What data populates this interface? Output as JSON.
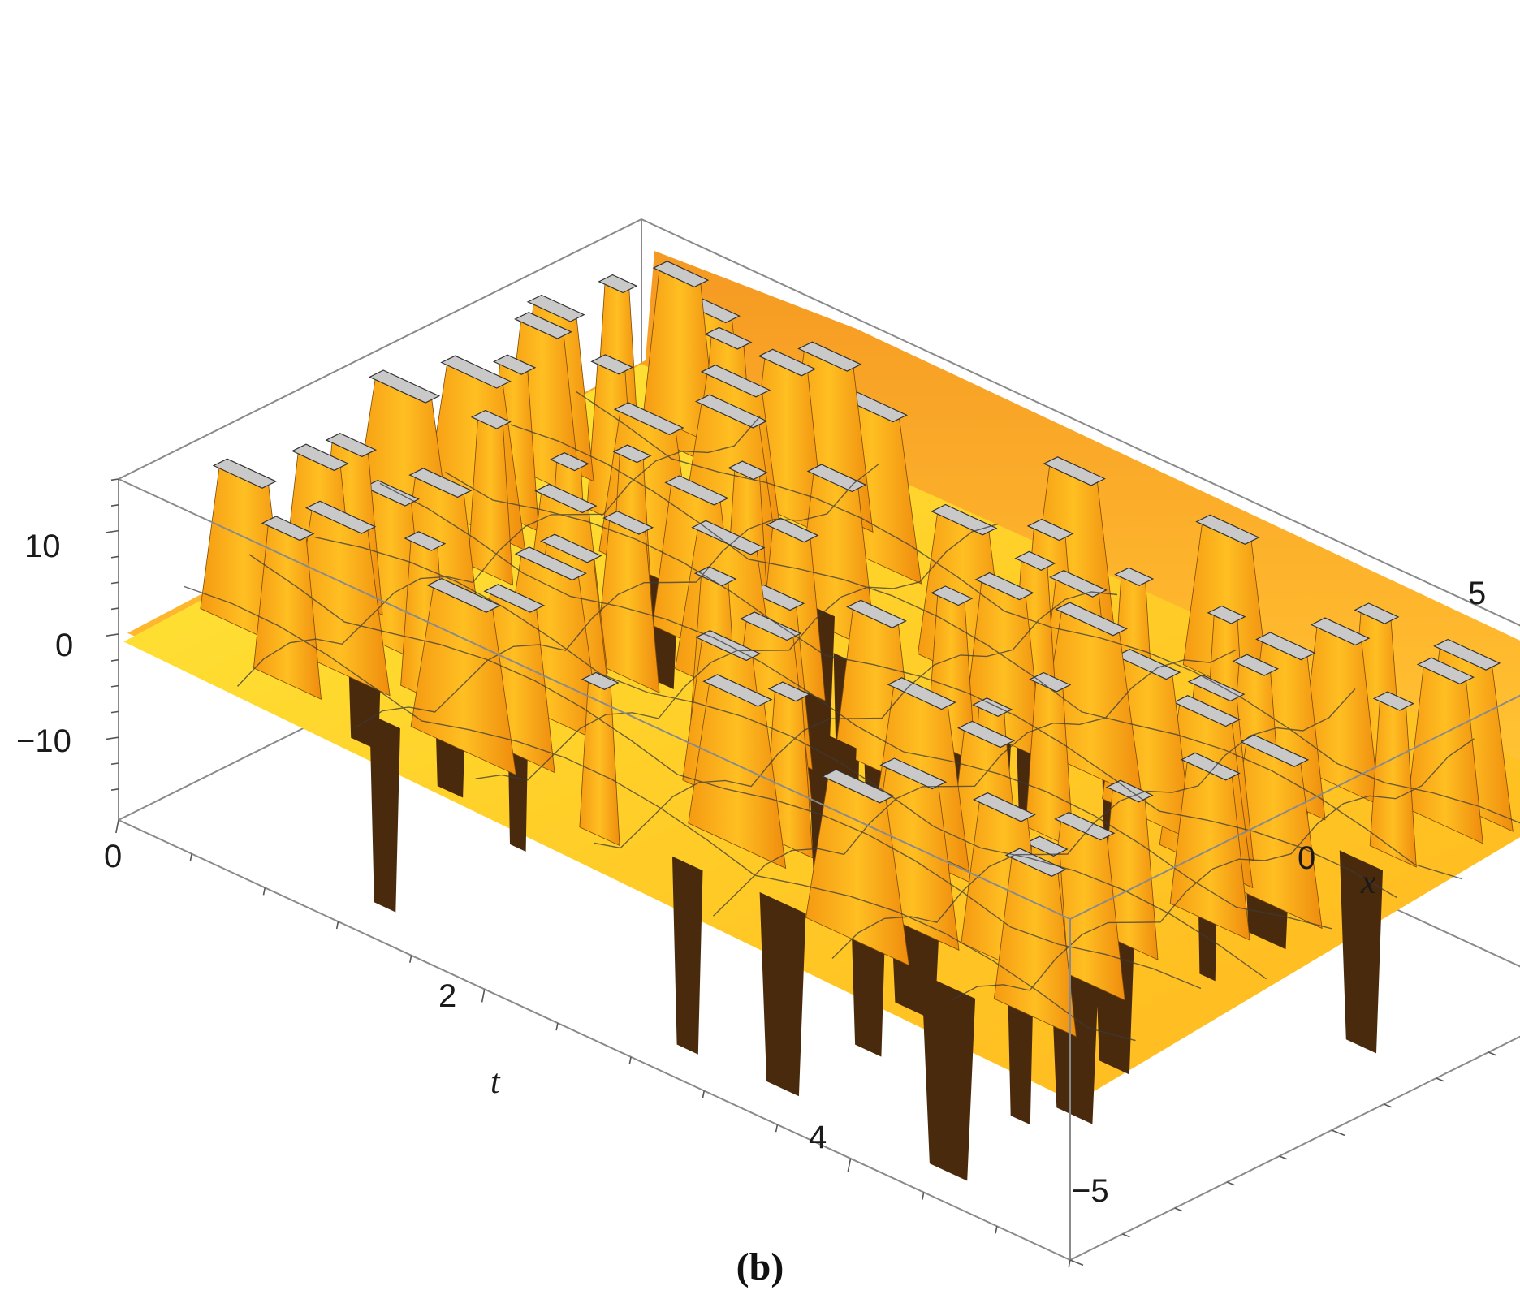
{
  "panel_label": "(b)",
  "chart_data": {
    "type": "surface3d",
    "xlabel": "t",
    "ylabel": "x",
    "zlabel": "",
    "t_range": [
      0,
      5.2
    ],
    "x_range": [
      -5,
      5
    ],
    "z_range": [
      -18,
      15
    ],
    "t_ticks": [
      {
        "value": 0,
        "label": "0"
      },
      {
        "value": 2,
        "label": "2"
      },
      {
        "value": 4,
        "label": "4"
      }
    ],
    "x_ticks": [
      {
        "value": -5,
        "label": "−5"
      },
      {
        "value": 0,
        "label": "0"
      },
      {
        "value": 5,
        "label": "5"
      }
    ],
    "z_ticks": [
      {
        "value": -10,
        "label": "−10"
      },
      {
        "value": 0,
        "label": "0"
      },
      {
        "value": 10,
        "label": "10"
      }
    ],
    "surface_colors": {
      "low": "#fff21c",
      "mid": "#ffc21a",
      "high": "#f08d10",
      "underside": "#4a2a0c",
      "clipped_top": "#c9c9c9",
      "mesh": "#3b3b3b",
      "box": "#8a8a8a"
    },
    "clipped": true,
    "box": true
  }
}
